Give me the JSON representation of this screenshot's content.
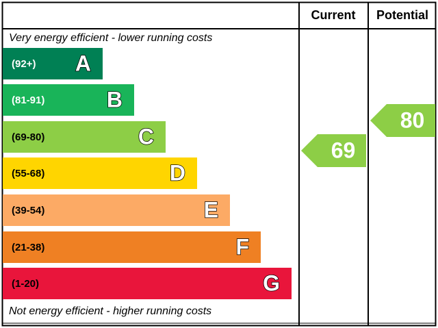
{
  "header": {
    "current": "Current",
    "potential": "Potential"
  },
  "top_note": "Very energy efficient - lower running costs",
  "bottom_note": "Not energy efficient - higher running costs",
  "bands": [
    {
      "range": "(92+)",
      "letter": "A",
      "color": "#008054",
      "text_color": "#ffffff"
    },
    {
      "range": "(81-91)",
      "letter": "B",
      "color": "#19b459",
      "text_color": "#ffffff"
    },
    {
      "range": "(69-80)",
      "letter": "C",
      "color": "#8dce46",
      "text_color": "#000000"
    },
    {
      "range": "(55-68)",
      "letter": "D",
      "color": "#ffd500",
      "text_color": "#000000"
    },
    {
      "range": "(39-54)",
      "letter": "E",
      "color": "#fcaa65",
      "text_color": "#000000"
    },
    {
      "range": "(21-38)",
      "letter": "F",
      "color": "#ef8023",
      "text_color": "#000000"
    },
    {
      "range": "(1-20)",
      "letter": "G",
      "color": "#e9153b",
      "text_color": "#000000"
    }
  ],
  "current": {
    "value": "69",
    "color": "#8dce46"
  },
  "potential": {
    "value": "80",
    "color": "#8dce46"
  }
}
